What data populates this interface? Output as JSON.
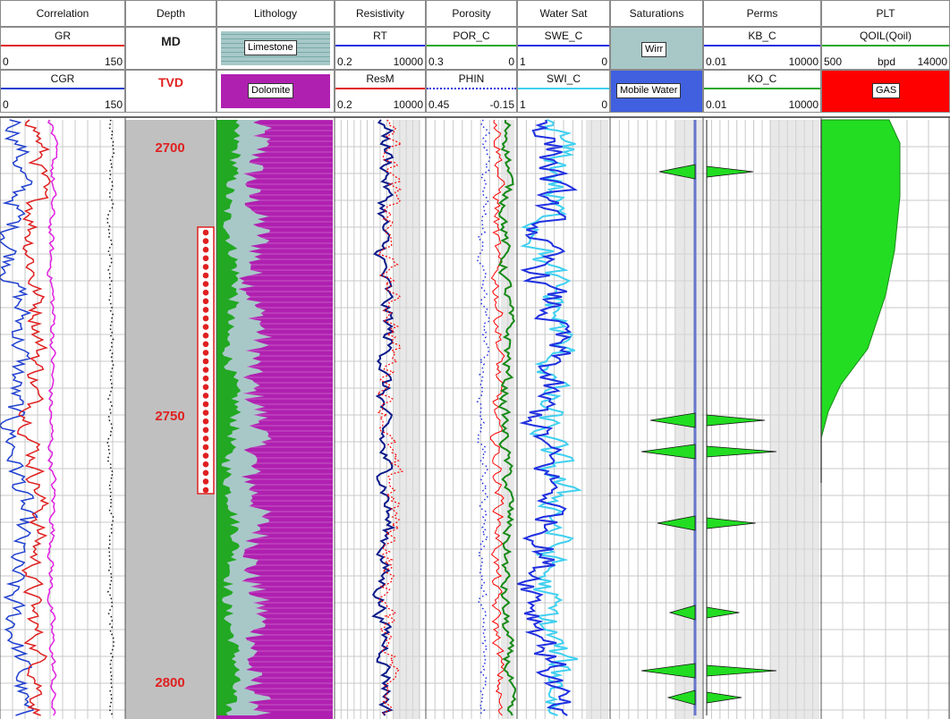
{
  "tracks": {
    "correlation": "Correlation",
    "depth": "Depth",
    "lithology": "Lithology",
    "resistivity": "Resistivity",
    "porosity": "Porosity",
    "water_sat": "Water Sat",
    "saturations": "Saturations",
    "perms": "Perms",
    "plt": "PLT"
  },
  "curves": {
    "gr": {
      "name": "GR",
      "min": "0",
      "max": "150"
    },
    "cgr": {
      "name": "CGR",
      "min": "0",
      "max": "150"
    },
    "md": "MD",
    "tvd": "TVD",
    "limestone": "Limestone",
    "dolomite": "Dolomite",
    "rt": {
      "name": "RT",
      "min": "0.2",
      "max": "10000"
    },
    "resm": {
      "name": "ResM",
      "min": "0.2",
      "max": "10000"
    },
    "por_c": {
      "name": "POR_C",
      "min": "0.3",
      "max": "0"
    },
    "phin": {
      "name": "PHIN",
      "min": "0.45",
      "max": "-0.15"
    },
    "swe_c": {
      "name": "SWE_C",
      "min": "1",
      "max": "0"
    },
    "swi_c": {
      "name": "SWI_C",
      "min": "1",
      "max": "0"
    },
    "wirr": "Wirr",
    "mobile_water": "Mobile Water",
    "kb_c": {
      "name": "KB_C",
      "min": "0.01",
      "max": "10000"
    },
    "ko_c": {
      "name": "KO_C",
      "min": "0.01",
      "max": "10000"
    },
    "qoil": {
      "name": "QOIL(Qoil)",
      "min": "500",
      "unit": "bpd",
      "max": "14000"
    },
    "gas": "GAS"
  },
  "depths": [
    "2700",
    "2750",
    "2800"
  ],
  "colors": {
    "gr": "#e02020",
    "cgr": "#2040d0",
    "gray": "#c0c0c0",
    "green": "#22a822",
    "purple": "#b020b0",
    "red": "#ff0000",
    "blue": "#2030e0",
    "cyan": "#40d0f0",
    "grid": "#c8c8c8",
    "depth_red": "#e02020",
    "wirr_bg": "#a8c8c8",
    "mobile_bg": "#4060e0"
  }
}
